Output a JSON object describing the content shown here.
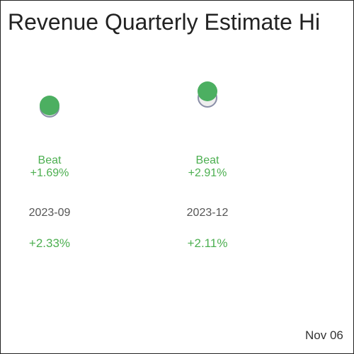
{
  "header": {
    "title": "Revenue Quarterly Estimate Hi"
  },
  "columns": [
    {
      "result": "Beat",
      "surprise": "+1.69%",
      "period": "2023-09",
      "change": "+2.33%"
    },
    {
      "result": "Beat",
      "surprise": "+2.91%",
      "period": "2023-12",
      "change": "+2.11%"
    }
  ],
  "footer": {
    "date": "Nov 06"
  }
}
